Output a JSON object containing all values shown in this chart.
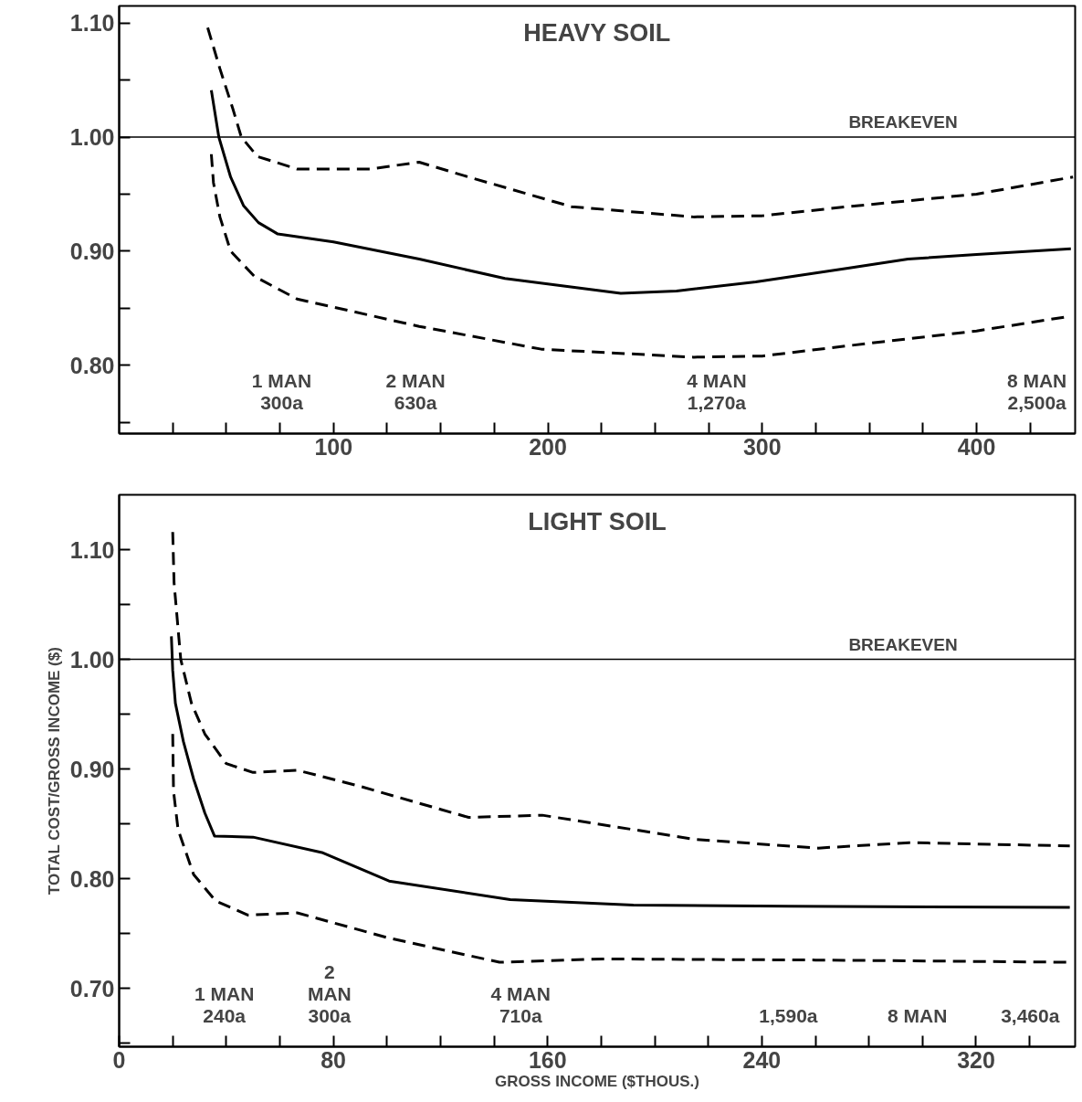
{
  "chart_data": [
    {
      "type": "line",
      "title": "HEAVY SOIL",
      "xlim": [
        0,
        446
      ],
      "ylim": [
        0.74,
        1.115
      ],
      "grid": false,
      "tick_labels": "xy",
      "xticks": [
        {
          "value": 25,
          "label": null
        },
        {
          "value": 50,
          "label": null
        },
        {
          "value": 75,
          "label": null
        },
        100,
        {
          "value": 125,
          "label": null
        },
        {
          "value": 150,
          "label": null
        },
        {
          "value": 175,
          "label": null
        },
        200,
        {
          "value": 225,
          "label": null
        },
        {
          "value": 250,
          "label": null
        },
        {
          "value": 275,
          "label": null
        },
        300,
        {
          "value": 325,
          "label": null
        },
        {
          "value": 350,
          "label": null
        },
        {
          "value": 375,
          "label": null
        },
        400,
        {
          "value": 425,
          "label": null
        }
      ],
      "yticks": [
        {
          "value": 0.75,
          "label": null
        },
        {
          "value": 0.8,
          "label": "0.80"
        },
        {
          "value": 0.85,
          "label": null
        },
        {
          "value": 0.9,
          "label": "0.90"
        },
        {
          "value": 0.95,
          "label": null
        },
        {
          "value": 1.0,
          "label": "1.00"
        },
        {
          "value": 1.05,
          "label": null
        },
        {
          "value": 1.1,
          "label": "1.10"
        }
      ],
      "ref_lines": [
        {
          "axis": "y",
          "value": 1.0,
          "label": "BREAKEVEN",
          "color": "#000000"
        }
      ],
      "annotations": [
        "1 MAN\n300a",
        "2 MAN\n630a",
        "4 MAN\n1,270a",
        "8 MAN\n2,500a"
      ],
      "series": [
        {
          "color": "#000000",
          "line_style": "solid",
          "x": [
            43,
            46.5,
            52,
            58,
            65,
            74,
            100,
            140,
            180,
            234,
            260,
            297,
            340,
            368,
            400,
            444
          ],
          "values": [
            1.041,
            1.0,
            0.965,
            0.94,
            0.925,
            0.915,
            0.908,
            0.893,
            0.876,
            0.863,
            0.865,
            0.873,
            0.885,
            0.893,
            0.897,
            0.902
          ]
        },
        {
          "color": "#000000",
          "line_style": "dashed",
          "x": [
            41.3,
            47,
            53,
            57,
            64.5,
            83,
            117,
            140,
            163,
            211,
            268,
            300,
            340,
            400,
            445
          ],
          "values": [
            1.096,
            1.06,
            1.025,
            1.0,
            0.983,
            0.972,
            0.972,
            0.978,
            0.965,
            0.939,
            0.93,
            0.931,
            0.939,
            0.95,
            0.965
          ]
        },
        {
          "color": "#000000",
          "line_style": "dashed",
          "x": [
            43,
            44,
            47,
            52,
            63,
            83,
            140,
            197,
            268,
            300,
            340,
            400,
            444
          ],
          "values": [
            0.985,
            0.96,
            0.93,
            0.9,
            0.878,
            0.858,
            0.834,
            0.814,
            0.807,
            0.808,
            0.817,
            0.83,
            0.843
          ]
        }
      ]
    },
    {
      "type": "line",
      "title": "LIGHT SOIL",
      "xlabel": "GROSS INCOME ($THOUS.)",
      "ylabel": "TOTAL COST/GROSS INCOME ($)",
      "xlim": [
        0,
        357
      ],
      "ylim": [
        0.647,
        1.15
      ],
      "grid": false,
      "xticks": [
        0,
        {
          "value": 20,
          "label": null
        },
        {
          "value": 40,
          "label": null
        },
        {
          "value": 60,
          "label": null
        },
        80,
        {
          "value": 100,
          "label": null
        },
        {
          "value": 120,
          "label": null
        },
        {
          "value": 140,
          "label": null
        },
        160,
        {
          "value": 180,
          "label": null
        },
        {
          "value": 200,
          "label": null
        },
        {
          "value": 220,
          "label": null
        },
        240,
        {
          "value": 260,
          "label": null
        },
        {
          "value": 280,
          "label": null
        },
        {
          "value": 300,
          "label": null
        },
        320,
        {
          "value": 340,
          "label": null
        }
      ],
      "yticks": [
        {
          "value": 0.65,
          "label": null
        },
        {
          "value": 0.7,
          "label": "0.70"
        },
        {
          "value": 0.75,
          "label": null
        },
        {
          "value": 0.8,
          "label": "0.80"
        },
        {
          "value": 0.85,
          "label": null
        },
        {
          "value": 0.9,
          "label": "0.90"
        },
        {
          "value": 0.95,
          "label": null
        },
        {
          "value": 1.0,
          "label": "1.00"
        },
        {
          "value": 1.05,
          "label": null
        },
        {
          "value": 1.1,
          "label": "1.10"
        }
      ],
      "ref_lines": [
        {
          "axis": "y",
          "value": 1.0,
          "label": "BREAKEVEN",
          "color": "#000000"
        }
      ],
      "annotations": [
        "1 MAN\n240a",
        "2\nMAN\n300a",
        "4 MAN\n710a",
        "1,590a",
        "8 MAN",
        "3,460a"
      ],
      "series": [
        {
          "color": "#000000",
          "line_style": "solid",
          "x": [
            19.5,
            20,
            21,
            24,
            27.8,
            32,
            35.6,
            50,
            75.7,
            100.8,
            146,
            192,
            250,
            355
          ],
          "values": [
            1.021,
            0.99,
            0.96,
            0.925,
            0.891,
            0.86,
            0.839,
            0.838,
            0.824,
            0.798,
            0.781,
            0.776,
            0.775,
            0.774
          ]
        },
        {
          "color": "#000000",
          "line_style": "dashed",
          "x": [
            20,
            20.5,
            23,
            27,
            32,
            40,
            50,
            66.5,
            89,
            130.5,
            158,
            215,
            261,
            295,
            355
          ],
          "values": [
            1.116,
            1.07,
            1.0,
            0.96,
            0.932,
            0.905,
            0.897,
            0.899,
            0.885,
            0.856,
            0.858,
            0.836,
            0.828,
            0.833,
            0.83
          ]
        },
        {
          "color": "#000000",
          "line_style": "dashed",
          "x": [
            20,
            20.3,
            22,
            27.8,
            36,
            48,
            66.5,
            100.8,
            142,
            180.5,
            260,
            355
          ],
          "values": [
            0.932,
            0.88,
            0.845,
            0.804,
            0.78,
            0.767,
            0.769,
            0.746,
            0.724,
            0.727,
            0.726,
            0.724
          ]
        }
      ]
    }
  ]
}
